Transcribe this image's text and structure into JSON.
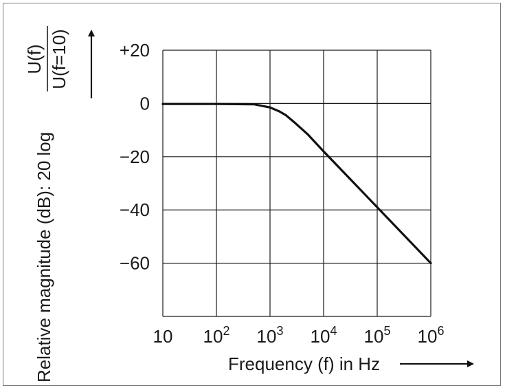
{
  "chart_data": {
    "type": "line",
    "xscale": "log",
    "xlim": [
      10,
      1000000
    ],
    "ylim": [
      -80,
      20
    ],
    "x_ticks": [
      {
        "value": 10,
        "base": "10",
        "exp": ""
      },
      {
        "value": 100,
        "base": "10",
        "exp": "2"
      },
      {
        "value": 1000,
        "base": "10",
        "exp": "3"
      },
      {
        "value": 10000,
        "base": "10",
        "exp": "4"
      },
      {
        "value": 100000,
        "base": "10",
        "exp": "5"
      },
      {
        "value": 1000000,
        "base": "10",
        "exp": "6"
      }
    ],
    "y_ticks": [
      {
        "value": 20,
        "label": "+20"
      },
      {
        "value": 0,
        "label": "0"
      },
      {
        "value": -20,
        "label": "−20"
      },
      {
        "value": -40,
        "label": "−40"
      },
      {
        "value": -60,
        "label": "−60"
      },
      {
        "value": -80,
        "label": ""
      }
    ],
    "xlabel": "Frequency (f) in Hz",
    "ylabel": "Relative magnitude (dB): 20 log",
    "ylabel_fraction": {
      "numerator": "U(f)",
      "denominator": "U(f=10)"
    },
    "grid": true,
    "series": [
      {
        "x": [
          10,
          100,
          500,
          1000,
          1500,
          2000,
          3000,
          5000,
          10000,
          100000,
          1000000
        ],
        "y": [
          -0.2,
          -0.2,
          -0.3,
          -1.5,
          -3,
          -4.5,
          -7.5,
          -11.5,
          -18,
          -39,
          -60
        ]
      }
    ]
  }
}
